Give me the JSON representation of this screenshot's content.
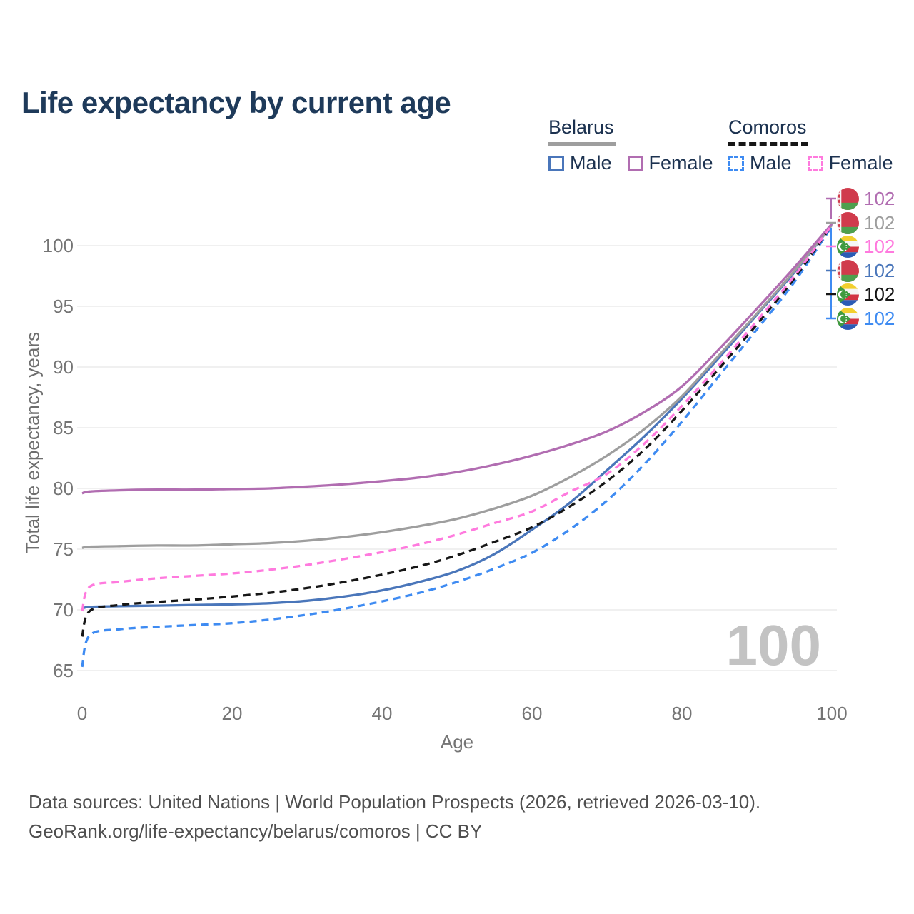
{
  "title": "Life expectancy by current age",
  "legend": {
    "groups": [
      {
        "label": "Belarus",
        "line_style": "solid",
        "line_color": "#9e9e9e",
        "items": [
          {
            "label": "Male",
            "color": "#4a76ba",
            "style": "solid"
          },
          {
            "label": "Female",
            "color": "#b16db1",
            "style": "solid"
          }
        ]
      },
      {
        "label": "Comoros",
        "line_style": "dashed",
        "line_color": "#161616",
        "items": [
          {
            "label": "Male",
            "color": "#3e8bf2",
            "style": "dashed"
          },
          {
            "label": "Female",
            "color": "#ff7ade",
            "style": "dashed"
          }
        ]
      }
    ]
  },
  "chart_data": {
    "type": "line",
    "title": "Life expectancy by current age",
    "xlabel": "Age",
    "ylabel": "Total life expectancy, years",
    "x_ticks": [
      0,
      20,
      40,
      60,
      80,
      100
    ],
    "y_ticks": [
      65,
      70,
      75,
      80,
      85,
      90,
      95,
      100
    ],
    "xlim": [
      0,
      100
    ],
    "ylim": [
      63,
      103
    ],
    "grid": "horizontal",
    "legend_position": "top-right",
    "watermark": "100",
    "ages": [
      0,
      1,
      5,
      10,
      15,
      20,
      25,
      30,
      35,
      40,
      45,
      50,
      55,
      60,
      65,
      70,
      75,
      80,
      85,
      90,
      95,
      100
    ],
    "series": [
      {
        "id": "belarus_male",
        "name": "Belarus Male",
        "country": "Belarus",
        "sex": "Male",
        "flag": "belarus",
        "color": "#4a76ba",
        "dash": "solid",
        "end_label": "102",
        "values": [
          70.1,
          70.25,
          70.3,
          70.35,
          70.4,
          70.45,
          70.55,
          70.75,
          71.1,
          71.6,
          72.3,
          73.2,
          74.6,
          76.6,
          78.8,
          81.5,
          84.3,
          87.4,
          90.8,
          94.3,
          97.8,
          101.7
        ]
      },
      {
        "id": "belarus_all",
        "name": "Belarus",
        "country": "Belarus",
        "sex": "All",
        "flag": "belarus",
        "color": "#9e9e9e",
        "dash": "solid",
        "end_label": "102",
        "values": [
          75.1,
          75.2,
          75.25,
          75.3,
          75.3,
          75.4,
          75.5,
          75.7,
          76.0,
          76.4,
          76.9,
          77.5,
          78.35,
          79.4,
          80.9,
          82.7,
          84.9,
          87.6,
          91.0,
          94.4,
          97.9,
          101.7
        ]
      },
      {
        "id": "belarus_female",
        "name": "Belarus Female",
        "country": "Belarus",
        "sex": "Female",
        "flag": "belarus",
        "color": "#b16db1",
        "dash": "solid",
        "end_label": "102",
        "values": [
          79.6,
          79.75,
          79.85,
          79.9,
          79.9,
          79.95,
          80.0,
          80.15,
          80.35,
          80.6,
          80.9,
          81.35,
          81.95,
          82.7,
          83.6,
          84.7,
          86.3,
          88.4,
          91.5,
          94.8,
          98.2,
          101.8
        ]
      },
      {
        "id": "comoros_male",
        "name": "Comoros Male",
        "country": "Comoros",
        "sex": "Male",
        "flag": "comoros",
        "color": "#3e8bf2",
        "dash": "dashed",
        "end_label": "102",
        "values": [
          65.3,
          67.9,
          68.4,
          68.6,
          68.75,
          68.9,
          69.2,
          69.6,
          70.1,
          70.7,
          71.4,
          72.3,
          73.4,
          74.7,
          76.6,
          79.0,
          82.0,
          85.5,
          89.3,
          93.1,
          97.0,
          101.6
        ]
      },
      {
        "id": "comoros_all",
        "name": "Comoros",
        "country": "Comoros",
        "sex": "All",
        "flag": "comoros",
        "color": "#161616",
        "dash": "dashed",
        "end_label": "102",
        "values": [
          67.8,
          69.9,
          70.4,
          70.65,
          70.85,
          71.1,
          71.4,
          71.8,
          72.3,
          72.9,
          73.6,
          74.5,
          75.6,
          76.8,
          78.5,
          80.6,
          83.2,
          86.4,
          89.9,
          93.5,
          97.3,
          101.7
        ]
      },
      {
        "id": "comoros_female",
        "name": "Comoros Female",
        "country": "Comoros",
        "sex": "Female",
        "flag": "comoros",
        "color": "#ff7ade",
        "dash": "dashed",
        "end_label": "102",
        "values": [
          69.9,
          71.9,
          72.3,
          72.6,
          72.8,
          73.0,
          73.3,
          73.7,
          74.2,
          74.75,
          75.4,
          76.2,
          77.15,
          78.1,
          79.7,
          81.2,
          83.7,
          86.8,
          90.2,
          93.8,
          97.5,
          101.7
        ]
      }
    ],
    "end_label_order": [
      "belarus_female",
      "belarus_all",
      "comoros_female",
      "belarus_male",
      "comoros_all",
      "comoros_male"
    ]
  },
  "footer": {
    "line1": "Data sources: United Nations | World Population Prospects (2026, retrieved 2026-03-10).",
    "line2": "GeoRank.org/life-expectancy/belarus/comoros | CC BY"
  }
}
